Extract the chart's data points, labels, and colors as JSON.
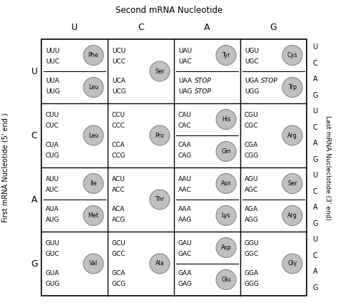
{
  "title": "Second mRNA Nucleotide",
  "ylabel_left": "First mRNA Nucleotide (5' end )",
  "ylabel_right": "Last mRNA Nucleclotide (3' end)",
  "first_nucleotides": [
    "U",
    "C",
    "A",
    "G"
  ],
  "second_nucleotides": [
    "U",
    "C",
    "A",
    "G"
  ],
  "cells": {
    "UU": {
      "codons": [
        "UUU",
        "UUC",
        "UUA",
        "UUG"
      ],
      "circle_label": "Phe",
      "circle_half": 0,
      "circle2_label": "Leu",
      "circle2_half": 1,
      "line": true,
      "stop_codons": []
    },
    "UC": {
      "codons": [
        "UCU",
        "UCC",
        "UCA",
        "UCG"
      ],
      "circle_label": "Ser",
      "circle_half": 1,
      "circle2_label": null,
      "line": false,
      "stop_codons": []
    },
    "UA": {
      "codons": [
        "UAU",
        "UAC",
        "UAA",
        "UAG"
      ],
      "circle_label": "Tyr",
      "circle_half": 0,
      "circle2_label": null,
      "line": true,
      "stop_codons": [
        "UAA",
        "UAG"
      ]
    },
    "UG": {
      "codons": [
        "UGU",
        "UGC",
        "UGA",
        "UGG"
      ],
      "circle_label": "Cys",
      "circle_half": 0,
      "circle2_label": "Trp",
      "circle2_half": 1,
      "line": true,
      "stop_codons": [
        "UGA"
      ]
    },
    "CU": {
      "codons": [
        "CUU",
        "CUC",
        "CUA",
        "CUG"
      ],
      "circle_label": "Leu",
      "circle_half": 1,
      "circle2_label": null,
      "line": false,
      "stop_codons": []
    },
    "CC": {
      "codons": [
        "CCU",
        "CCC",
        "CCA",
        "CCG"
      ],
      "circle_label": "Pro",
      "circle_half": 1,
      "circle2_label": null,
      "line": false,
      "stop_codons": []
    },
    "CA": {
      "codons": [
        "CAU",
        "CAC",
        "CAA",
        "CAG"
      ],
      "circle_label": "His",
      "circle_half": 0,
      "circle2_label": "Gin",
      "circle2_half": 1,
      "line": true,
      "stop_codons": []
    },
    "CG": {
      "codons": [
        "CGU",
        "CGC",
        "CGA",
        "CGG"
      ],
      "circle_label": "Arg",
      "circle_half": 1,
      "circle2_label": null,
      "line": false,
      "stop_codons": []
    },
    "AU": {
      "codons": [
        "AUU",
        "AUC",
        "AUA",
        "AUG"
      ],
      "circle_label": "Ile",
      "circle_half": 0,
      "circle2_label": "Met",
      "circle2_half": 1,
      "line": true,
      "stop_codons": []
    },
    "AC": {
      "codons": [
        "ACU",
        "ACC",
        "ACA",
        "ACG"
      ],
      "circle_label": "Thr",
      "circle_half": 1,
      "circle2_label": null,
      "line": false,
      "stop_codons": []
    },
    "AA": {
      "codons": [
        "AAU",
        "AAC",
        "AAA",
        "AAG"
      ],
      "circle_label": "Asn",
      "circle_half": 0,
      "circle2_label": "Lys",
      "circle2_half": 1,
      "line": true,
      "stop_codons": []
    },
    "AG": {
      "codons": [
        "AGU",
        "AGC",
        "AGA",
        "AGG"
      ],
      "circle_label": "Ser",
      "circle_half": 0,
      "circle2_label": "Arg",
      "circle2_half": 1,
      "line": true,
      "stop_codons": []
    },
    "GU": {
      "codons": [
        "GUU",
        "GUC",
        "GUA",
        "GUG"
      ],
      "circle_label": "Val",
      "circle_half": 1,
      "circle2_label": null,
      "line": false,
      "stop_codons": []
    },
    "GC": {
      "codons": [
        "GCU",
        "GCC",
        "GCA",
        "GCG"
      ],
      "circle_label": "Ala",
      "circle_half": 1,
      "circle2_label": null,
      "line": false,
      "stop_codons": []
    },
    "GA": {
      "codons": [
        "GAU",
        "GAC",
        "GAA",
        "GAG"
      ],
      "circle_label": "Asp",
      "circle_half": 0,
      "circle2_label": "Glu",
      "circle2_half": 1,
      "line": true,
      "stop_codons": []
    },
    "GG": {
      "codons": [
        "GGU",
        "GGC",
        "GGA",
        "GGG"
      ],
      "circle_label": "Gly",
      "circle_half": 1,
      "circle2_label": null,
      "line": false,
      "stop_codons": []
    }
  },
  "bg_color": "#ffffff",
  "circle_color": "#c0c0c0",
  "circle_edge": "#888888",
  "text_color": "#000000"
}
